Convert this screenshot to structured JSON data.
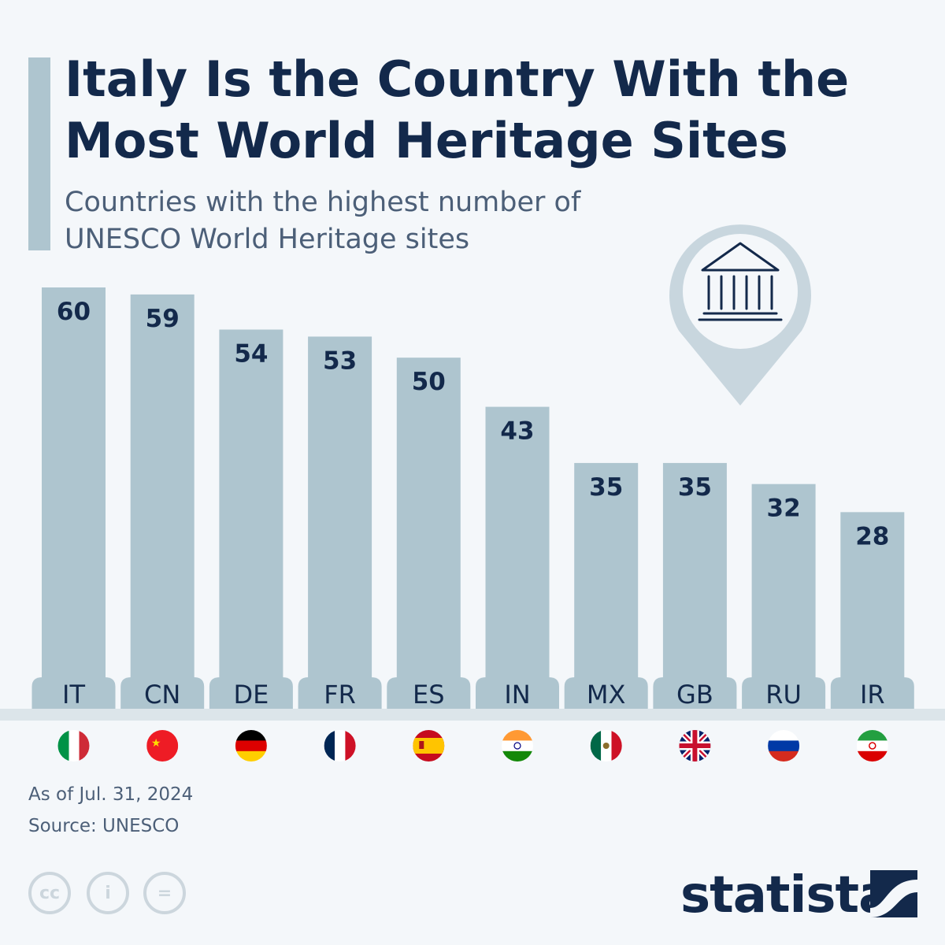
{
  "header": {
    "title": "Italy Is the Country With the Most World Heritage Sites",
    "subtitle": "Countries with the highest number of UNESCO World Heritage sites"
  },
  "chart_data": {
    "type": "bar",
    "title": "Italy Is the Country With the Most World Heritage Sites",
    "subtitle": "Countries with the highest number of UNESCO World Heritage sites",
    "categories": [
      "IT",
      "CN",
      "DE",
      "FR",
      "ES",
      "IN",
      "MX",
      "GB",
      "RU",
      "IR"
    ],
    "values": [
      60,
      59,
      54,
      53,
      50,
      43,
      35,
      35,
      32,
      28
    ],
    "ylim": [
      0,
      60
    ],
    "grid": false,
    "bar_color": "#aec5cf",
    "flags": [
      "italy-flag",
      "china-flag",
      "germany-flag",
      "france-flag",
      "spain-flag",
      "india-flag",
      "mexico-flag",
      "uk-flag",
      "russia-flag",
      "iran-flag"
    ],
    "icon": "museum-pin-icon"
  },
  "footer": {
    "date_note": "As of Jul. 31, 2024",
    "source": "Source: UNESCO",
    "license_icons": [
      "cc-icon",
      "by-icon",
      "nd-icon"
    ],
    "brand": "statista"
  }
}
